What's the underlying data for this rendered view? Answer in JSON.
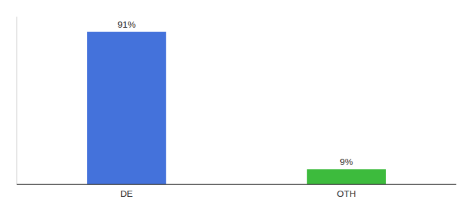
{
  "chart_data": {
    "type": "bar",
    "categories": [
      "DE",
      "OTH"
    ],
    "values": [
      91,
      9
    ],
    "value_labels": [
      "91%",
      "9%"
    ],
    "colors": [
      "#4472db",
      "#3dbb3d"
    ],
    "ylim": [
      0,
      100
    ],
    "data_labels": true,
    "tick_labels": "x",
    "grid": false
  }
}
